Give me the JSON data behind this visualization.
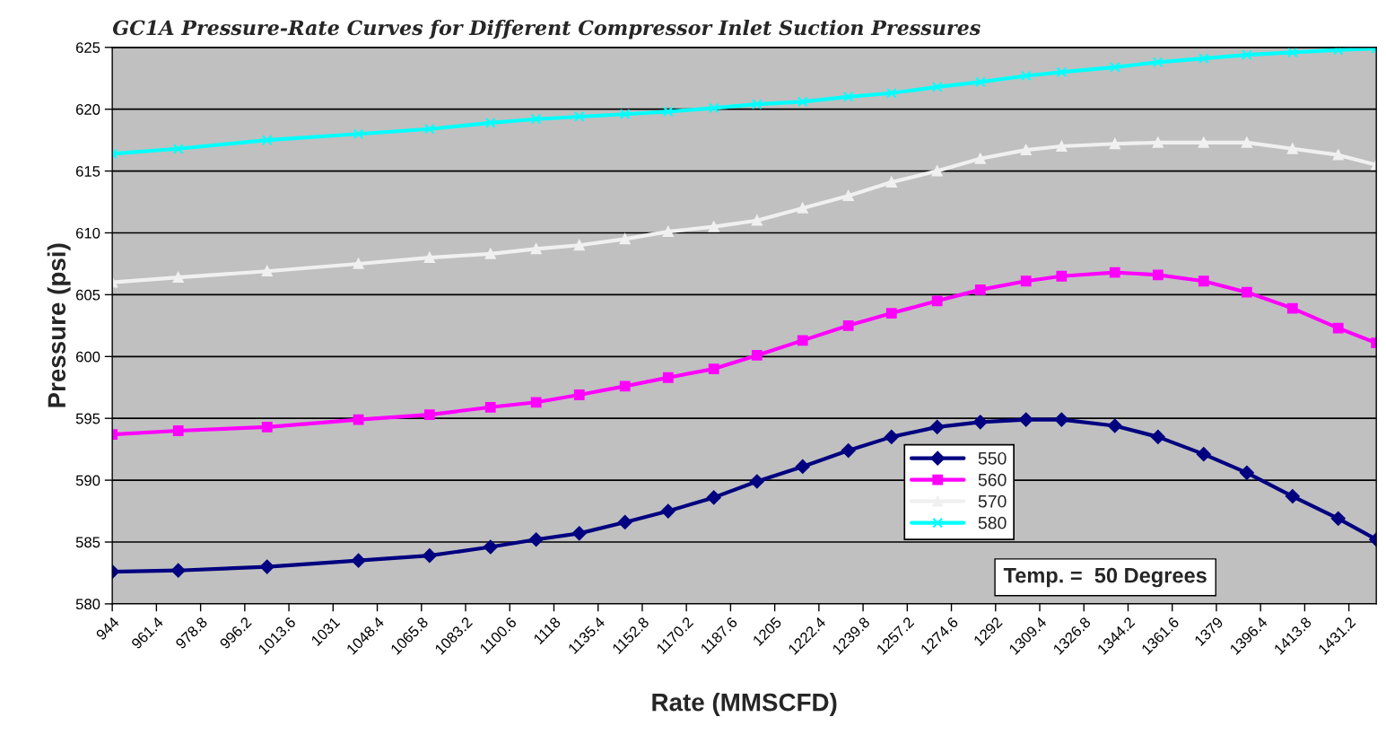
{
  "chart_data": {
    "type": "line",
    "title": "GC1A Pressure-Rate Curves for Different Compressor Inlet Suction Pressures",
    "xlabel": "Rate (MMSCFD)",
    "ylabel": "Pressure (psi)",
    "x": [
      944,
      970,
      1005,
      1041,
      1069,
      1093,
      1111,
      1128,
      1146,
      1163,
      1181,
      1198,
      1216,
      1234,
      1251,
      1269,
      1286,
      1304,
      1318,
      1339,
      1356,
      1374,
      1391,
      1409,
      1427,
      1442
    ],
    "series": [
      {
        "name": "550",
        "color": "#000080",
        "marker": "diamond",
        "values": [
          582.6,
          582.7,
          583.0,
          583.5,
          583.9,
          584.6,
          585.2,
          585.7,
          586.6,
          587.5,
          588.6,
          589.9,
          591.1,
          592.4,
          593.5,
          594.3,
          594.7,
          594.9,
          594.9,
          594.4,
          593.5,
          592.1,
          590.6,
          588.7,
          586.9,
          585.2
        ]
      },
      {
        "name": "560",
        "color": "#ff00ff",
        "marker": "square",
        "values": [
          593.7,
          594.0,
          594.3,
          594.9,
          595.3,
          595.9,
          596.3,
          596.9,
          597.6,
          598.3,
          599.0,
          600.1,
          601.3,
          602.5,
          603.5,
          604.5,
          605.4,
          606.1,
          606.5,
          606.8,
          606.6,
          606.1,
          605.2,
          603.9,
          602.3,
          601.1
        ]
      },
      {
        "name": "570",
        "color": "#f0f0f0",
        "marker": "triangle",
        "values": [
          606.0,
          606.4,
          606.9,
          607.5,
          608.0,
          608.3,
          608.7,
          609.0,
          609.5,
          610.1,
          610.5,
          611.0,
          612.0,
          613.0,
          614.1,
          615.0,
          616.0,
          616.7,
          617.0,
          617.2,
          617.3,
          617.3,
          617.3,
          616.8,
          616.3,
          615.5
        ]
      },
      {
        "name": "580",
        "color": "#00ffff",
        "marker": "cross",
        "values": [
          616.4,
          616.8,
          617.5,
          618.0,
          618.4,
          618.9,
          619.2,
          619.4,
          619.6,
          619.8,
          620.1,
          620.4,
          620.6,
          621.0,
          621.3,
          621.8,
          622.2,
          622.7,
          623.0,
          623.4,
          623.8,
          624.1,
          624.4,
          624.6,
          624.8,
          624.9
        ]
      }
    ],
    "xlim": [
      944,
      1442
    ],
    "xticks": [
      944,
      961.4,
      978.8,
      996.2,
      1013.6,
      1031,
      1048.4,
      1065.8,
      1083.2,
      1100.6,
      1118,
      1135.4,
      1152.8,
      1170.2,
      1187.6,
      1205,
      1222.4,
      1239.8,
      1257.2,
      1274.6,
      1292,
      1309.4,
      1326.8,
      1344.2,
      1361.6,
      1379,
      1396.4,
      1413.8,
      1431.2
    ],
    "ylim": [
      580,
      625
    ],
    "yticks": [
      580,
      585,
      590,
      595,
      600,
      605,
      610,
      615,
      620,
      625
    ],
    "grid": "y",
    "legend": "bottom",
    "line_style": "solid",
    "annotations": [
      "Temp. =  50 Degrees"
    ]
  }
}
